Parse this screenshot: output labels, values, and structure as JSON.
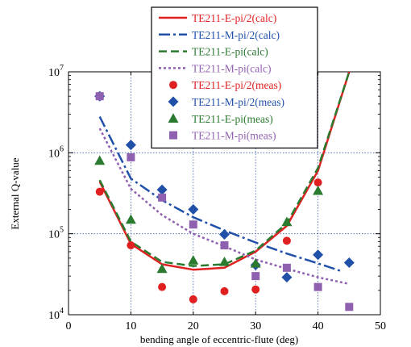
{
  "chart_data": {
    "type": "scatter",
    "title": "",
    "xlabel": "bending angle of eccentric-flute (deg)",
    "ylabel": "External Q-value",
    "xlim": [
      0,
      50
    ],
    "ylim": [
      10000,
      10000000
    ],
    "yscale": "log",
    "grid": true,
    "legend_position": "top-center",
    "x_ticks": [
      "0",
      "10",
      "20",
      "30",
      "40",
      "50"
    ],
    "y_ticks": [
      {
        "mantissa": "10",
        "exp": "4"
      },
      {
        "mantissa": "10",
        "exp": "5"
      },
      {
        "mantissa": "10",
        "exp": "6"
      },
      {
        "mantissa": "10",
        "exp": "7"
      }
    ],
    "series": [
      {
        "name": "TE211-E-pi/2(calc)",
        "kind": "line",
        "style": "solid",
        "color": "#e02020",
        "x": [
          5,
          10,
          15,
          20,
          25,
          30,
          35,
          40,
          45
        ],
        "y": [
          440000,
          75000,
          42000,
          36000,
          38000,
          60000,
          125000,
          600000,
          10000000
        ]
      },
      {
        "name": "TE211-M-pi/2(calc)",
        "kind": "line",
        "style": "dashdot",
        "color": "#2050a8",
        "x": [
          5,
          10,
          15,
          20,
          25,
          30,
          35,
          40,
          44
        ],
        "y": [
          2800000,
          480000,
          260000,
          160000,
          110000,
          78000,
          57000,
          43000,
          34000
        ]
      },
      {
        "name": "TE211-E-pi(calc)",
        "kind": "line",
        "style": "dashed",
        "color": "#2a7a30",
        "x": [
          5,
          10,
          15,
          20,
          25,
          30,
          35,
          40,
          45
        ],
        "y": [
          460000,
          80000,
          45000,
          40000,
          42000,
          62000,
          135000,
          650000,
          10000000
        ]
      },
      {
        "name": "TE211-M-pi(calc)",
        "kind": "line",
        "style": "dotted",
        "color": "#9060b0",
        "x": [
          5,
          10,
          15,
          20,
          25,
          30,
          35,
          40,
          45
        ],
        "y": [
          2000000,
          360000,
          170000,
          100000,
          70000,
          48000,
          37000,
          29000,
          24000
        ]
      },
      {
        "name": "TE211-E-pi/2(meas)",
        "kind": "marker",
        "marker": "circle",
        "color": "#e02020",
        "x": [
          5,
          10,
          15,
          20,
          25,
          30,
          35,
          40
        ],
        "y": [
          330000,
          72000,
          22000,
          15500,
          19500,
          20500,
          82000,
          430000
        ]
      },
      {
        "name": "TE211-M-pi/2(meas)",
        "kind": "marker",
        "marker": "diamond",
        "color": "#2050a8",
        "x": [
          5,
          10,
          15,
          20,
          25,
          30,
          35,
          40,
          45
        ],
        "y": [
          5000000,
          1250000,
          350000,
          200000,
          98000,
          41000,
          29000,
          55000,
          44000
        ]
      },
      {
        "name": "TE211-E-pi(meas)",
        "kind": "marker",
        "marker": "triangle",
        "color": "#2a7a30",
        "x": [
          5,
          10,
          15,
          20,
          25,
          30,
          35,
          40
        ],
        "y": [
          800000,
          150000,
          37000,
          47000,
          45000,
          43000,
          140000,
          340000
        ]
      },
      {
        "name": "TE211-M-pi(meas)",
        "kind": "marker",
        "marker": "square",
        "color": "#9060b0",
        "x": [
          5,
          10,
          15,
          20,
          25,
          30,
          35,
          40,
          45
        ],
        "y": [
          5000000,
          880000,
          280000,
          130000,
          72000,
          30000,
          38000,
          22000,
          12500
        ]
      }
    ]
  }
}
